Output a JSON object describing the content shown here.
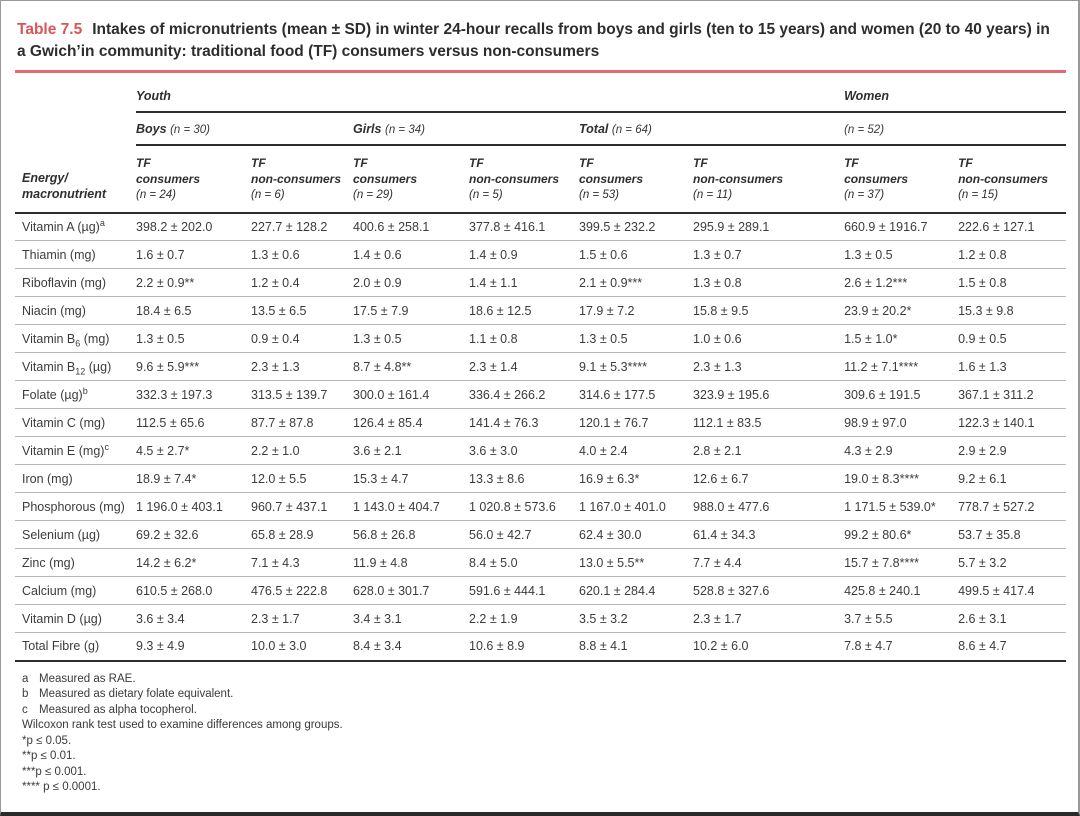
{
  "page": {
    "title_label": "Table 7.5",
    "title_text": "Intakes of micronutrients (mean ± SD) in winter 24-hour recalls from boys and girls (ten to 15 years) and women (20 to 40 years) in a Gwich’in community: traditional food (TF) consumers versus non-consumers"
  },
  "table": {
    "corner_label_line1": "Energy/",
    "corner_label_line2": "macronutrient",
    "top_groups": [
      {
        "label": "Youth",
        "span": 6
      },
      {
        "label": "Women",
        "span": 2
      }
    ],
    "mid_groups": [
      {
        "name": "Boys",
        "n": "(n = 30)"
      },
      {
        "name": "Girls",
        "n": "(n = 34)"
      },
      {
        "name": "Total",
        "n": "(n = 64)"
      },
      {
        "name": "",
        "n": "(n = 52)"
      }
    ],
    "columns": [
      {
        "l1": "TF",
        "l2": "consumers",
        "n": "(n = 24)"
      },
      {
        "l1": "TF",
        "l2": "non-consumers",
        "n": "(n = 6)"
      },
      {
        "l1": "TF",
        "l2": "consumers",
        "n": "(n = 29)"
      },
      {
        "l1": "TF",
        "l2": "non-consumers",
        "n": "(n = 5)"
      },
      {
        "l1": "TF",
        "l2": "consumers",
        "n": "(n = 53)"
      },
      {
        "l1": "TF",
        "l2": "non-consumers",
        "n": "(n = 11)"
      },
      {
        "l1": "TF",
        "l2": "consumers",
        "n": "(n = 37)"
      },
      {
        "l1": "TF",
        "l2": "non-consumers",
        "n": "(n = 15)"
      }
    ],
    "rows": [
      {
        "label": [
          {
            "t": "text",
            "v": "Vitamin A (µg)"
          },
          {
            "t": "sup",
            "v": "a"
          }
        ],
        "values": [
          "398.2 ± 202.0",
          "227.7 ± 128.2",
          "400.6 ± 258.1",
          "377.8 ± 416.1",
          "399.5 ± 232.2",
          "295.9 ± 289.1",
          "660.9 ± 1916.7",
          "222.6 ± 127.1"
        ]
      },
      {
        "label": [
          {
            "t": "text",
            "v": "Thiamin (mg)"
          }
        ],
        "values": [
          "1.6 ± 0.7",
          "1.3 ± 0.6",
          "1.4 ± 0.6",
          "1.4 ± 0.9",
          "1.5 ± 0.6",
          "1.3 ± 0.7",
          "1.3 ± 0.5",
          "1.2 ± 0.8"
        ]
      },
      {
        "label": [
          {
            "t": "text",
            "v": "Riboflavin (mg)"
          }
        ],
        "values": [
          "2.2 ± 0.9**",
          "1.2 ± 0.4",
          "2.0 ± 0.9",
          "1.4 ± 1.1",
          "2.1 ± 0.9***",
          "1.3 ± 0.8",
          "2.6 ± 1.2***",
          "1.5 ± 0.8"
        ]
      },
      {
        "label": [
          {
            "t": "text",
            "v": "Niacin (mg)"
          }
        ],
        "values": [
          "18.4 ± 6.5",
          "13.5 ± 6.5",
          "17.5 ± 7.9",
          "18.6 ± 12.5",
          "17.9 ± 7.2",
          "15.8 ± 9.5",
          "23.9 ± 20.2*",
          "15.3 ± 9.8"
        ]
      },
      {
        "label": [
          {
            "t": "text",
            "v": "Vitamin B"
          },
          {
            "t": "sub",
            "v": "6"
          },
          {
            "t": "text",
            "v": " (mg)"
          }
        ],
        "values": [
          "1.3 ± 0.5",
          "0.9 ± 0.4",
          "1.3 ± 0.5",
          "1.1 ± 0.8",
          "1.3 ± 0.5",
          "1.0 ± 0.6",
          "1.5 ± 1.0*",
          "0.9 ± 0.5"
        ]
      },
      {
        "label": [
          {
            "t": "text",
            "v": "Vitamin B"
          },
          {
            "t": "sub",
            "v": "12"
          },
          {
            "t": "text",
            "v": " (µg)"
          }
        ],
        "values": [
          "9.6 ± 5.9***",
          "2.3 ± 1.3",
          "8.7 ± 4.8**",
          "2.3 ± 1.4",
          "9.1 ± 5.3****",
          "2.3 ± 1.3",
          "11.2 ± 7.1****",
          "1.6 ± 1.3"
        ]
      },
      {
        "label": [
          {
            "t": "text",
            "v": "Folate (µg)"
          },
          {
            "t": "sup",
            "v": "b"
          }
        ],
        "values": [
          "332.3 ± 197.3",
          "313.5 ± 139.7",
          "300.0 ± 161.4",
          "336.4 ± 266.2",
          "314.6 ± 177.5",
          "323.9 ± 195.6",
          "309.6 ± 191.5",
          "367.1 ± 311.2"
        ]
      },
      {
        "label": [
          {
            "t": "text",
            "v": "Vitamin C (mg)"
          }
        ],
        "values": [
          "112.5 ± 65.6",
          "87.7 ± 87.8",
          "126.4 ± 85.4",
          "141.4 ± 76.3",
          "120.1 ± 76.7",
          "112.1 ± 83.5",
          "98.9 ± 97.0",
          "122.3 ± 140.1"
        ]
      },
      {
        "label": [
          {
            "t": "text",
            "v": "Vitamin E (mg)"
          },
          {
            "t": "sup",
            "v": "c"
          }
        ],
        "values": [
          "4.5 ± 2.7*",
          "2.2 ± 1.0",
          "3.6 ± 2.1",
          "3.6 ± 3.0",
          "4.0 ± 2.4",
          "2.8 ± 2.1",
          "4.3 ± 2.9",
          "2.9 ± 2.9"
        ]
      },
      {
        "label": [
          {
            "t": "text",
            "v": "Iron (mg)"
          }
        ],
        "values": [
          "18.9 ± 7.4*",
          "12.0 ± 5.5",
          "15.3 ± 4.7",
          "13.3 ± 8.6",
          "16.9 ± 6.3*",
          "12.6 ± 6.7",
          "19.0 ± 8.3****",
          "9.2 ± 6.1"
        ]
      },
      {
        "label": [
          {
            "t": "text",
            "v": "Phosphorous (mg)"
          }
        ],
        "values": [
          "1 196.0 ± 403.1",
          "960.7 ± 437.1",
          "1 143.0 ± 404.7",
          "1 020.8 ± 573.6",
          "1 167.0 ± 401.0",
          "988.0 ± 477.6",
          "1 171.5 ± 539.0*",
          "778.7 ± 527.2"
        ]
      },
      {
        "label": [
          {
            "t": "text",
            "v": "Selenium (µg)"
          }
        ],
        "values": [
          "69.2 ± 32.6",
          "65.8 ± 28.9",
          "56.8 ± 26.8",
          "56.0 ± 42.7",
          "62.4 ± 30.0",
          "61.4 ± 34.3",
          "99.2 ± 80.6*",
          "53.7 ± 35.8"
        ]
      },
      {
        "label": [
          {
            "t": "text",
            "v": "Zinc (mg)"
          }
        ],
        "values": [
          "14.2 ± 6.2*",
          "7.1 ± 4.3",
          "11.9 ± 4.8",
          "8.4 ± 5.0",
          "13.0 ± 5.5**",
          "7.7 ± 4.4",
          "15.7 ± 7.8****",
          "5.7 ± 3.2"
        ]
      },
      {
        "label": [
          {
            "t": "text",
            "v": "Calcium (mg)"
          }
        ],
        "values": [
          "610.5 ± 268.0",
          "476.5 ± 222.8",
          "628.0 ± 301.7",
          "591.6 ± 444.1",
          "620.1 ± 284.4",
          "528.8 ± 327.6",
          "425.8 ± 240.1",
          "499.5 ± 417.4"
        ]
      },
      {
        "label": [
          {
            "t": "text",
            "v": "Vitamin D (µg)"
          }
        ],
        "values": [
          "3.6 ± 3.4",
          "2.3 ± 1.7",
          "3.4 ± 3.1",
          "2.2 ± 1.9",
          "3.5 ± 3.2",
          "2.3 ± 1.7",
          "3.7 ± 5.5",
          "2.6 ± 3.1"
        ]
      },
      {
        "label": [
          {
            "t": "text",
            "v": "Total Fibre (g)"
          }
        ],
        "values": [
          "9.3 ± 4.9",
          "10.0 ± 3.0",
          "8.4 ± 3.4",
          "10.6 ± 8.9",
          "8.8 ± 4.1",
          "10.2 ± 6.0",
          "7.8 ± 4.7",
          "8.6 ± 4.7"
        ]
      }
    ]
  },
  "footnotes": [
    {
      "marker": "a",
      "text": "Measured as RAE."
    },
    {
      "marker": "b",
      "text": "Measured as dietary folate equivalent."
    },
    {
      "marker": "c",
      "text": "Measured as alpha tocopherol."
    },
    {
      "marker": "",
      "text": "Wilcoxon rank test used to examine differences among groups."
    },
    {
      "marker": "",
      "text": "*p ≤ 0.05."
    },
    {
      "marker": "",
      "text": "**p ≤ 0.01."
    },
    {
      "marker": "",
      "text": "***p ≤ 0.001."
    },
    {
      "marker": "",
      "text": "**** p ≤ 0.0001."
    }
  ]
}
